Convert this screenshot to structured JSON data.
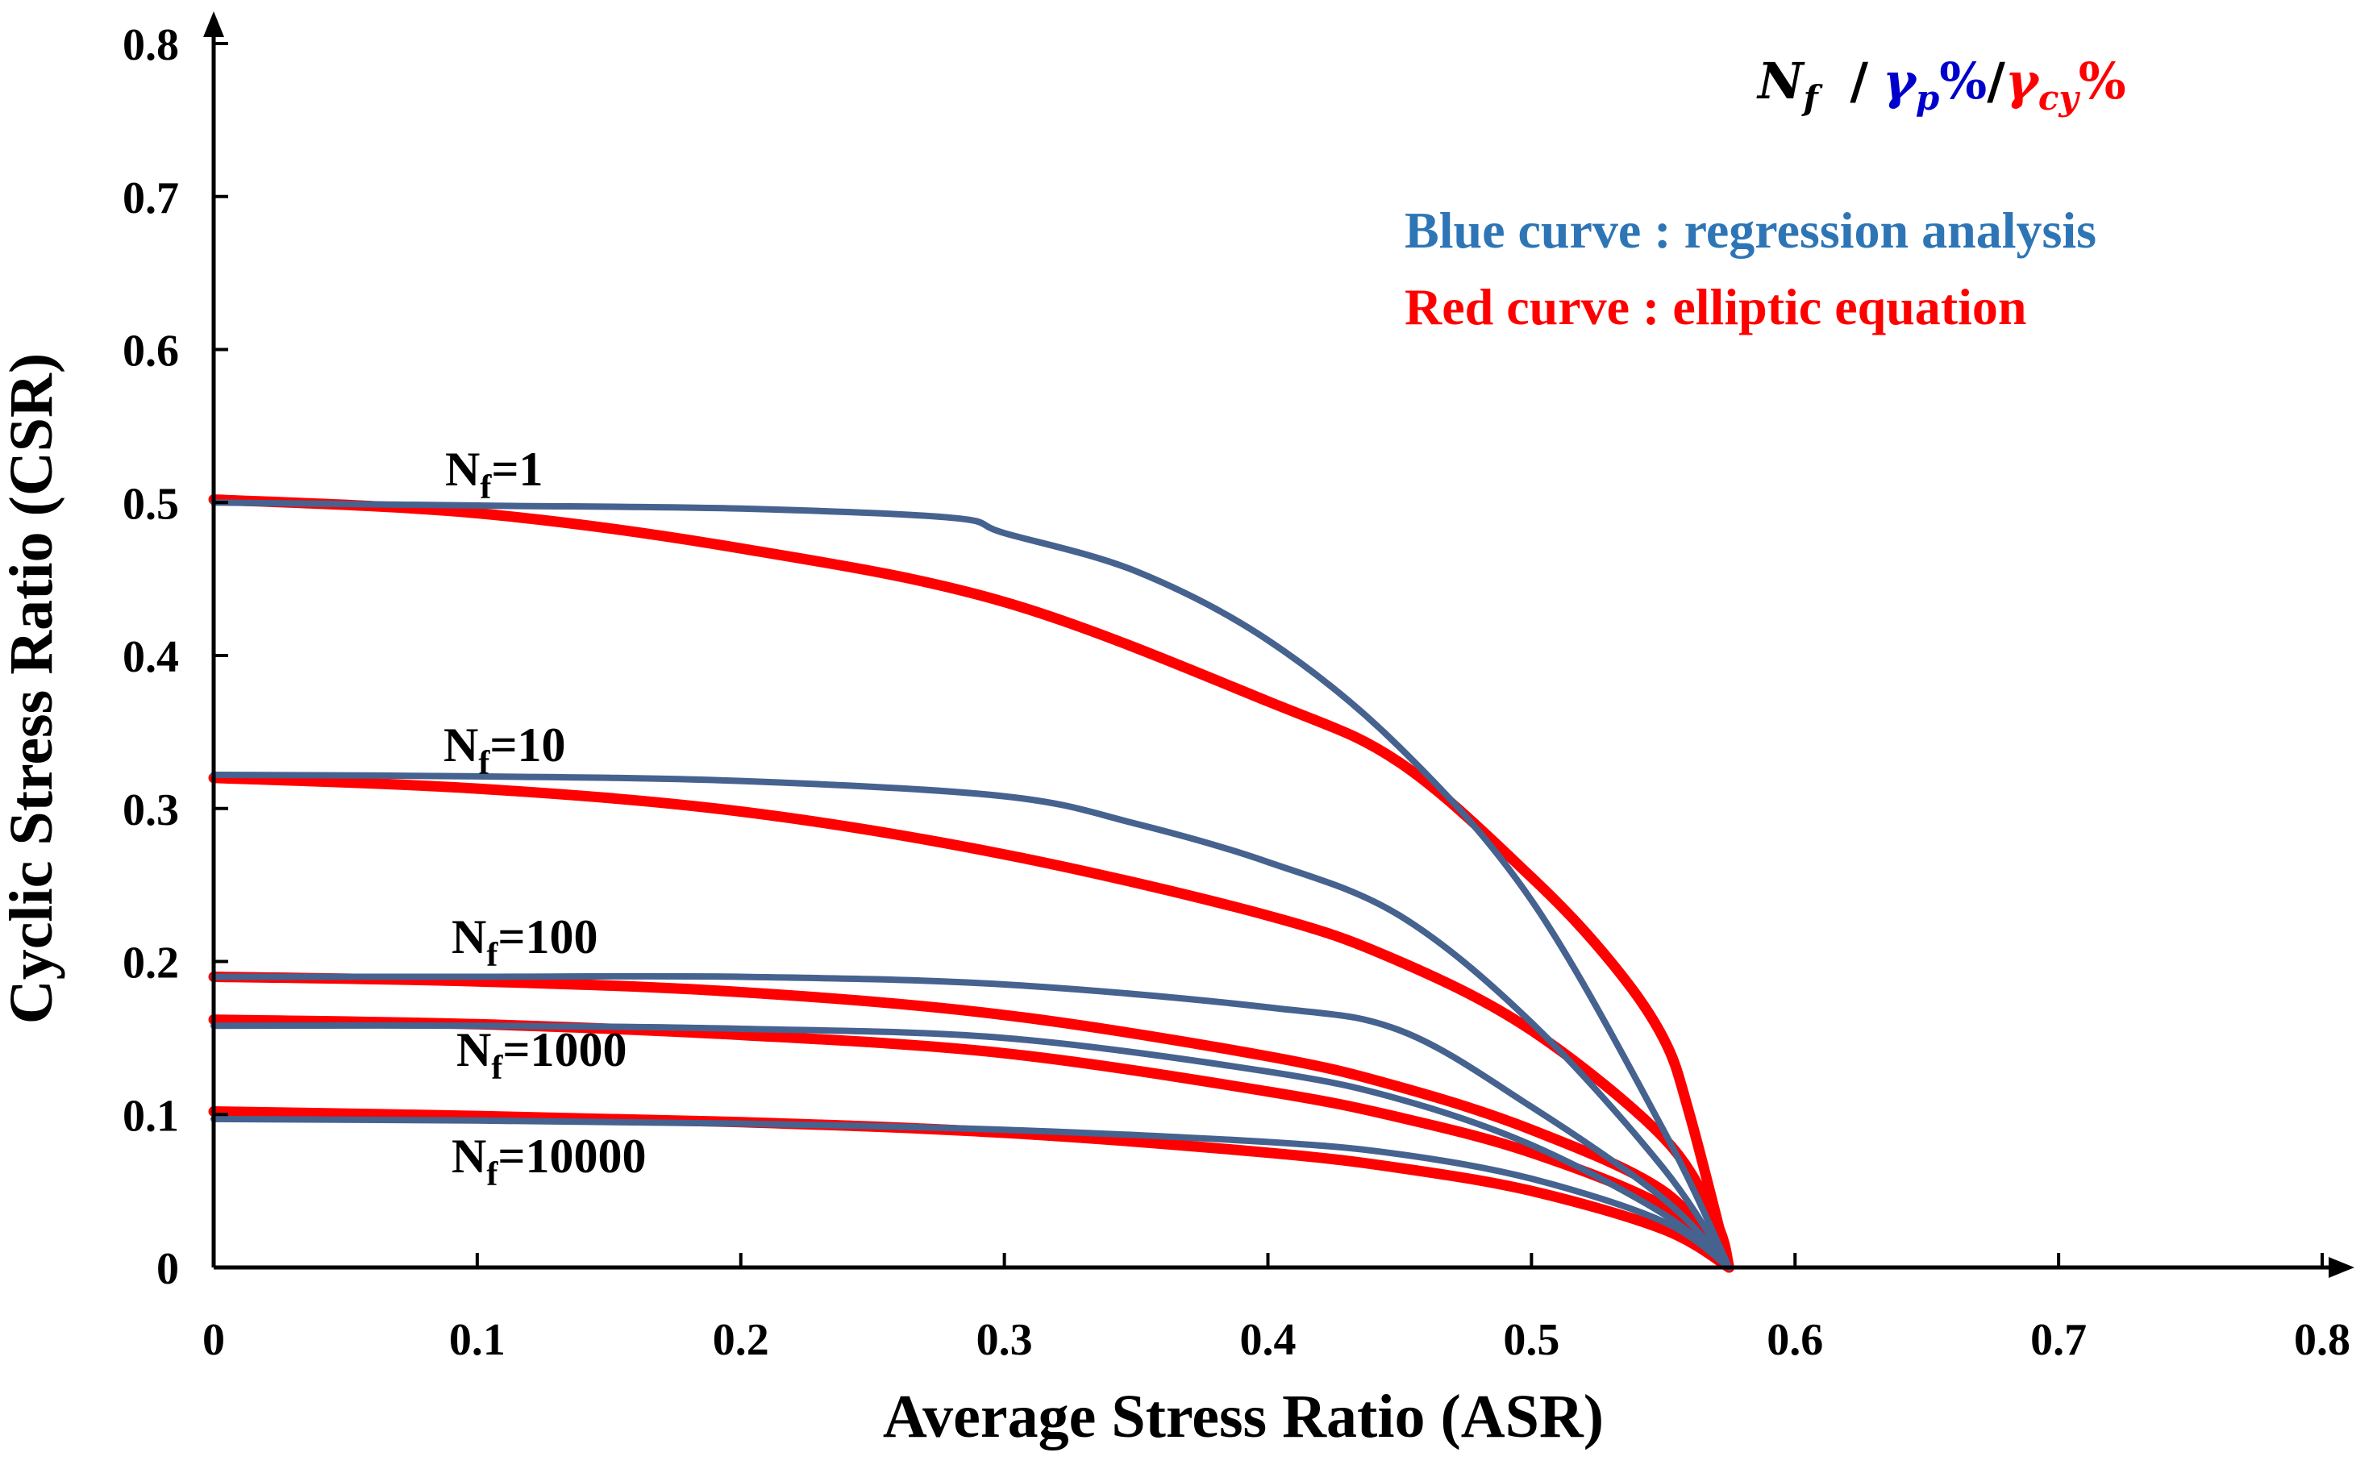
{
  "chart_data": {
    "type": "line",
    "title": "",
    "xlabel": "Average Stress Ratio (ASR)",
    "ylabel": "Cyclic Stress Ratio (CSR)",
    "xlim": [
      0,
      0.8
    ],
    "ylim": [
      0,
      0.8
    ],
    "xticks": [
      "0",
      "0.1",
      "0.2",
      "0.3",
      "0.4",
      "0.5",
      "0.6",
      "0.7",
      "0.8"
    ],
    "yticks": [
      "0",
      "0.1",
      "0.2",
      "0.3",
      "0.4",
      "0.5",
      "0.6",
      "0.7",
      "0.8"
    ],
    "grid": false,
    "colors": {
      "blue": "#46628f",
      "red": "#ff0000",
      "legend_blue": "#2e75b6",
      "formula_blue": "#0000cc"
    },
    "formula": {
      "n": "N",
      "n_sub": "f",
      "sep1": " /",
      "gp": "γ",
      "gp_sub": "p",
      "gp_pct": "%",
      "sep2": "/",
      "gcy": "γ",
      "gcy_sub": "cy",
      "gcy_pct": "%"
    },
    "legend": {
      "blue": "Blue curve : regression analysis",
      "red": "Red curve : elliptic equation"
    },
    "curve_labels": [
      {
        "n": "N",
        "sub": "f",
        "rest": "=1"
      },
      {
        "n": "N",
        "sub": "f",
        "rest": "=10"
      },
      {
        "n": "N",
        "sub": "f",
        "rest": "=100"
      },
      {
        "n": "N",
        "sub": "f",
        "rest": "=1000"
      },
      {
        "n": "N",
        "sub": "f",
        "rest": "=10000"
      }
    ],
    "series": [
      {
        "name": "Nf=1 regression",
        "color": "blue",
        "x": [
          0,
          0.1,
          0.2,
          0.28,
          0.3,
          0.35,
          0.4,
          0.45,
          0.5,
          0.55,
          0.575
        ],
        "y": [
          0.5,
          0.498,
          0.496,
          0.49,
          0.48,
          0.455,
          0.41,
          0.34,
          0.24,
          0.09,
          0
        ]
      },
      {
        "name": "Nf=1 elliptic",
        "color": "red",
        "x": [
          0,
          0.1,
          0.2,
          0.3,
          0.4,
          0.45,
          0.5,
          0.53,
          0.55,
          0.56,
          0.575
        ],
        "y": [
          0.502,
          0.493,
          0.47,
          0.435,
          0.37,
          0.33,
          0.255,
          0.2,
          0.15,
          0.1,
          0
        ]
      },
      {
        "name": "Nf=10 regression",
        "color": "blue",
        "x": [
          0,
          0.1,
          0.2,
          0.3,
          0.35,
          0.4,
          0.45,
          0.5,
          0.55,
          0.575
        ],
        "y": [
          0.322,
          0.321,
          0.318,
          0.308,
          0.29,
          0.265,
          0.23,
          0.16,
          0.065,
          0
        ]
      },
      {
        "name": "Nf=10 elliptic",
        "color": "red",
        "x": [
          0,
          0.1,
          0.2,
          0.3,
          0.4,
          0.45,
          0.5,
          0.55,
          0.57,
          0.575
        ],
        "y": [
          0.32,
          0.313,
          0.298,
          0.27,
          0.23,
          0.2,
          0.155,
          0.085,
          0.03,
          0
        ]
      },
      {
        "name": "Nf=100 regression",
        "color": "blue",
        "x": [
          0,
          0.1,
          0.2,
          0.3,
          0.4,
          0.45,
          0.5,
          0.55,
          0.575
        ],
        "y": [
          0.19,
          0.19,
          0.19,
          0.185,
          0.17,
          0.155,
          0.105,
          0.045,
          0
        ]
      },
      {
        "name": "Nf=100 elliptic",
        "color": "red",
        "x": [
          0,
          0.1,
          0.2,
          0.3,
          0.4,
          0.45,
          0.5,
          0.55,
          0.575
        ],
        "y": [
          0.19,
          0.187,
          0.18,
          0.165,
          0.138,
          0.118,
          0.09,
          0.05,
          0
        ]
      },
      {
        "name": "Nf=1000 regression",
        "color": "blue",
        "x": [
          0,
          0.1,
          0.2,
          0.3,
          0.4,
          0.45,
          0.5,
          0.55,
          0.575
        ],
        "y": [
          0.158,
          0.158,
          0.156,
          0.15,
          0.128,
          0.11,
          0.08,
          0.035,
          0
        ]
      },
      {
        "name": "Nf=1000 elliptic",
        "color": "red",
        "x": [
          0,
          0.1,
          0.2,
          0.3,
          0.4,
          0.45,
          0.5,
          0.55,
          0.575
        ],
        "y": [
          0.162,
          0.159,
          0.152,
          0.14,
          0.115,
          0.098,
          0.075,
          0.04,
          0
        ]
      },
      {
        "name": "Nf=10000 regression",
        "color": "blue",
        "x": [
          0,
          0.1,
          0.2,
          0.3,
          0.4,
          0.45,
          0.5,
          0.55,
          0.575
        ],
        "y": [
          0.097,
          0.096,
          0.094,
          0.09,
          0.082,
          0.074,
          0.058,
          0.03,
          0
        ]
      },
      {
        "name": "Nf=10000 elliptic",
        "color": "red",
        "x": [
          0,
          0.1,
          0.2,
          0.3,
          0.4,
          0.45,
          0.5,
          0.55,
          0.575
        ],
        "y": [
          0.102,
          0.099,
          0.095,
          0.088,
          0.075,
          0.065,
          0.05,
          0.025,
          0
        ]
      }
    ]
  }
}
